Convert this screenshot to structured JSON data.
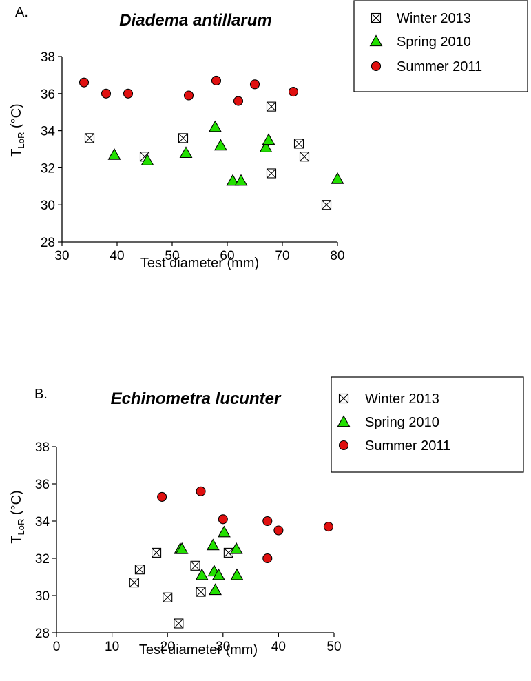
{
  "chart_data": [
    {
      "type": "scatter",
      "panel": "A.",
      "title": "Diadema antillarum",
      "xlabel": "Test diameter (mm)",
      "ylabel_main": "T",
      "ylabel_sub": "LoR",
      "ylabel_unit": " (°C)",
      "xlim": [
        30,
        80
      ],
      "ylim": [
        28,
        38
      ],
      "xticks": [
        30,
        40,
        50,
        60,
        70,
        80
      ],
      "yticks": [
        28,
        30,
        32,
        34,
        36,
        38
      ],
      "legend_position": "top-right",
      "series": [
        {
          "name": "Winter 2013",
          "marker": "boxed-x",
          "color": "#ffffff",
          "points": [
            [
              35,
              33.6
            ],
            [
              45,
              32.6
            ],
            [
              52,
              33.6
            ],
            [
              68,
              35.3
            ],
            [
              68,
              31.7
            ],
            [
              73,
              33.3
            ],
            [
              74,
              32.6
            ],
            [
              78,
              30.0
            ]
          ]
        },
        {
          "name": "Spring 2010",
          "marker": "triangle",
          "color": "#22e000",
          "points": [
            [
              39.5,
              32.7
            ],
            [
              45.5,
              32.4
            ],
            [
              52.5,
              32.8
            ],
            [
              57.8,
              34.2
            ],
            [
              58.8,
              33.2
            ],
            [
              61,
              31.3
            ],
            [
              62.5,
              31.3
            ],
            [
              67,
              33.1
            ],
            [
              67.5,
              33.5
            ],
            [
              80,
              31.4
            ]
          ]
        },
        {
          "name": "Summer 2011",
          "marker": "circle",
          "color": "#e01010",
          "points": [
            [
              34,
              36.6
            ],
            [
              38,
              36.0
            ],
            [
              42,
              36.0
            ],
            [
              53,
              35.9
            ],
            [
              58,
              36.7
            ],
            [
              62,
              35.6
            ],
            [
              65,
              36.5
            ],
            [
              72,
              36.1
            ]
          ]
        }
      ]
    },
    {
      "type": "scatter",
      "panel": "B.",
      "title": "Echinometra lucunter",
      "xlabel": "Test  diameter (mm)",
      "ylabel_main": "T",
      "ylabel_sub": "LoR",
      "ylabel_unit": " (°C)",
      "xlim": [
        0,
        50
      ],
      "ylim": [
        28,
        38
      ],
      "xticks": [
        0,
        10,
        20,
        30,
        40,
        50
      ],
      "yticks": [
        28,
        30,
        32,
        34,
        36,
        38
      ],
      "legend_position": "top-right",
      "series": [
        {
          "name": "Winter 2013",
          "marker": "boxed-x",
          "color": "#ffffff",
          "points": [
            [
              14,
              30.7
            ],
            [
              15,
              31.4
            ],
            [
              18,
              32.3
            ],
            [
              20,
              29.9
            ],
            [
              22,
              28.5
            ],
            [
              25,
              31.6
            ],
            [
              26,
              30.2
            ],
            [
              31,
              32.3
            ]
          ]
        },
        {
          "name": "Spring 2010",
          "marker": "triangle",
          "color": "#22e000",
          "points": [
            [
              22.3,
              32.5
            ],
            [
              22.6,
              32.5
            ],
            [
              26.2,
              31.1
            ],
            [
              28.2,
              32.7
            ],
            [
              28.4,
              31.3
            ],
            [
              28.6,
              30.3
            ],
            [
              29.2,
              31.1
            ],
            [
              30.2,
              33.4
            ],
            [
              32.4,
              32.5
            ],
            [
              32.5,
              31.1
            ]
          ]
        },
        {
          "name": "Summer 2011",
          "marker": "circle",
          "color": "#e01010",
          "points": [
            [
              19,
              35.3
            ],
            [
              26,
              35.6
            ],
            [
              30,
              34.1
            ],
            [
              38,
              34.0
            ],
            [
              38,
              32.0
            ],
            [
              40,
              33.5
            ],
            [
              49,
              33.7
            ]
          ]
        }
      ]
    }
  ]
}
